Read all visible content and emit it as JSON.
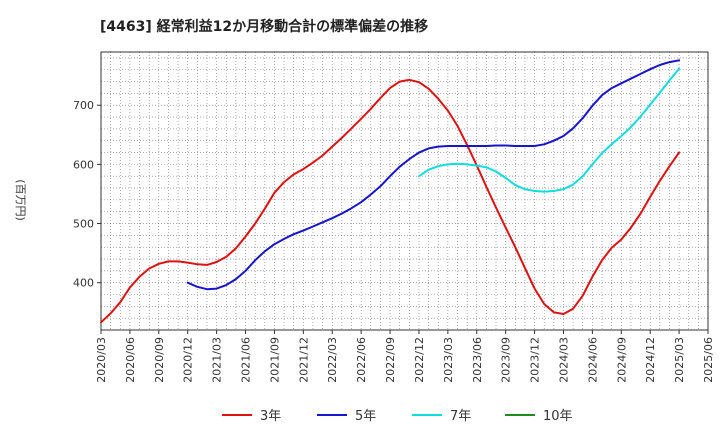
{
  "chart_data": {
    "type": "line",
    "title": "[4463]  経常利益12か月移動合計の標準偏差の推移",
    "ylabel": "(百万円)",
    "xlabel": "",
    "x_ticks": [
      "2020/03",
      "2020/06",
      "2020/09",
      "2020/12",
      "2021/03",
      "2021/06",
      "2021/09",
      "2021/12",
      "2022/03",
      "2022/06",
      "2022/09",
      "2022/12",
      "2023/03",
      "2023/06",
      "2023/09",
      "2023/12",
      "2024/03",
      "2024/06",
      "2024/09",
      "2024/12",
      "2025/03",
      "2025/06"
    ],
    "y_ticks": [
      400,
      500,
      600,
      700
    ],
    "ylim": [
      320,
      790
    ],
    "grid": true,
    "legend_position": "bottom",
    "series": [
      {
        "name": "3年",
        "color": "#dd1111",
        "points": [
          [
            "2020/03",
            333
          ],
          [
            "2020/04",
            348
          ],
          [
            "2020/05",
            367
          ],
          [
            "2020/06",
            392
          ],
          [
            "2020/07",
            410
          ],
          [
            "2020/08",
            424
          ],
          [
            "2020/09",
            432
          ],
          [
            "2020/10",
            436
          ],
          [
            "2020/11",
            436
          ],
          [
            "2020/12",
            434
          ],
          [
            "2021/01",
            431
          ],
          [
            "2021/02",
            430
          ],
          [
            "2021/03",
            435
          ],
          [
            "2021/04",
            444
          ],
          [
            "2021/05",
            458
          ],
          [
            "2021/06",
            478
          ],
          [
            "2021/07",
            500
          ],
          [
            "2021/08",
            525
          ],
          [
            "2021/09",
            552
          ],
          [
            "2021/10",
            570
          ],
          [
            "2021/11",
            583
          ],
          [
            "2021/12",
            592
          ],
          [
            "2022/01",
            603
          ],
          [
            "2022/02",
            615
          ],
          [
            "2022/03",
            630
          ],
          [
            "2022/04",
            645
          ],
          [
            "2022/05",
            661
          ],
          [
            "2022/06",
            677
          ],
          [
            "2022/07",
            694
          ],
          [
            "2022/08",
            712
          ],
          [
            "2022/09",
            729
          ],
          [
            "2022/10",
            740
          ],
          [
            "2022/11",
            743
          ],
          [
            "2022/12",
            739
          ],
          [
            "2023/01",
            728
          ],
          [
            "2023/02",
            711
          ],
          [
            "2023/03",
            691
          ],
          [
            "2023/04",
            665
          ],
          [
            "2023/05",
            633
          ],
          [
            "2023/06",
            598
          ],
          [
            "2023/07",
            562
          ],
          [
            "2023/08",
            527
          ],
          [
            "2023/09",
            493
          ],
          [
            "2023/10",
            460
          ],
          [
            "2023/11",
            425
          ],
          [
            "2023/12",
            390
          ],
          [
            "2024/01",
            364
          ],
          [
            "2024/02",
            350
          ],
          [
            "2024/03",
            347
          ],
          [
            "2024/04",
            356
          ],
          [
            "2024/05",
            378
          ],
          [
            "2024/06",
            410
          ],
          [
            "2024/07",
            438
          ],
          [
            "2024/08",
            459
          ],
          [
            "2024/09",
            473
          ],
          [
            "2024/10",
            493
          ],
          [
            "2024/11",
            517
          ],
          [
            "2024/12",
            545
          ],
          [
            "2025/01",
            572
          ],
          [
            "2025/02",
            597
          ],
          [
            "2025/03",
            620
          ]
        ]
      },
      {
        "name": "5年",
        "color": "#1515cc",
        "points": [
          [
            "2020/12",
            400
          ],
          [
            "2021/01",
            393
          ],
          [
            "2021/02",
            389
          ],
          [
            "2021/03",
            390
          ],
          [
            "2021/04",
            396
          ],
          [
            "2021/05",
            406
          ],
          [
            "2021/06",
            420
          ],
          [
            "2021/07",
            438
          ],
          [
            "2021/08",
            453
          ],
          [
            "2021/09",
            465
          ],
          [
            "2021/10",
            474
          ],
          [
            "2021/11",
            482
          ],
          [
            "2021/12",
            488
          ],
          [
            "2022/01",
            495
          ],
          [
            "2022/02",
            502
          ],
          [
            "2022/03",
            509
          ],
          [
            "2022/04",
            517
          ],
          [
            "2022/05",
            526
          ],
          [
            "2022/06",
            536
          ],
          [
            "2022/07",
            549
          ],
          [
            "2022/08",
            563
          ],
          [
            "2022/09",
            580
          ],
          [
            "2022/10",
            596
          ],
          [
            "2022/11",
            609
          ],
          [
            "2022/12",
            620
          ],
          [
            "2023/01",
            627
          ],
          [
            "2023/02",
            630
          ],
          [
            "2023/03",
            631
          ],
          [
            "2023/04",
            631
          ],
          [
            "2023/05",
            631
          ],
          [
            "2023/06",
            631
          ],
          [
            "2023/07",
            631
          ],
          [
            "2023/08",
            632
          ],
          [
            "2023/09",
            632
          ],
          [
            "2023/10",
            631
          ],
          [
            "2023/11",
            631
          ],
          [
            "2023/12",
            631
          ],
          [
            "2024/01",
            634
          ],
          [
            "2024/02",
            640
          ],
          [
            "2024/03",
            648
          ],
          [
            "2024/04",
            661
          ],
          [
            "2024/05",
            678
          ],
          [
            "2024/06",
            699
          ],
          [
            "2024/07",
            717
          ],
          [
            "2024/08",
            729
          ],
          [
            "2024/09",
            737
          ],
          [
            "2024/10",
            745
          ],
          [
            "2024/11",
            753
          ],
          [
            "2024/12",
            761
          ],
          [
            "2025/01",
            768
          ],
          [
            "2025/02",
            773
          ],
          [
            "2025/03",
            776
          ]
        ]
      },
      {
        "name": "7年",
        "color": "#11dddd",
        "points": [
          [
            "2022/12",
            580
          ],
          [
            "2023/01",
            591
          ],
          [
            "2023/02",
            597
          ],
          [
            "2023/03",
            600
          ],
          [
            "2023/04",
            601
          ],
          [
            "2023/05",
            600
          ],
          [
            "2023/06",
            598
          ],
          [
            "2023/07",
            595
          ],
          [
            "2023/08",
            588
          ],
          [
            "2023/09",
            577
          ],
          [
            "2023/10",
            565
          ],
          [
            "2023/11",
            558
          ],
          [
            "2023/12",
            555
          ],
          [
            "2024/01",
            554
          ],
          [
            "2024/02",
            555
          ],
          [
            "2024/03",
            558
          ],
          [
            "2024/04",
            566
          ],
          [
            "2024/05",
            580
          ],
          [
            "2024/06",
            600
          ],
          [
            "2024/07",
            619
          ],
          [
            "2024/08",
            634
          ],
          [
            "2024/09",
            648
          ],
          [
            "2024/10",
            663
          ],
          [
            "2024/11",
            681
          ],
          [
            "2024/12",
            701
          ],
          [
            "2025/01",
            721
          ],
          [
            "2025/02",
            742
          ],
          [
            "2025/03",
            762
          ]
        ]
      },
      {
        "name": "10年",
        "color": "#228822",
        "points": []
      }
    ]
  }
}
